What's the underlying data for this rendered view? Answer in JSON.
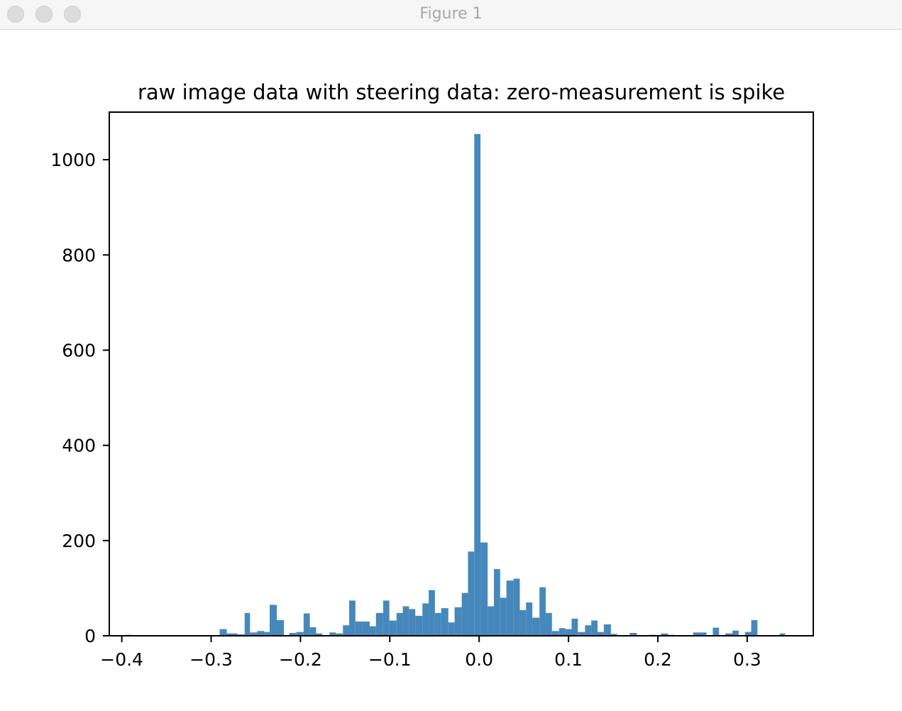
{
  "window": {
    "title": "Figure 1",
    "buttons": [
      "close",
      "minimize",
      "zoom"
    ]
  },
  "chart_data": {
    "type": "bar",
    "title": "raw image data with steering data: zero-measurement is spike",
    "xlabel": "",
    "ylabel": "",
    "xlim": [
      -0.414,
      0.374
    ],
    "ylim": [
      0,
      1100
    ],
    "xticks": [
      -0.4,
      -0.3,
      -0.2,
      -0.1,
      0.0,
      0.1,
      0.2,
      0.3
    ],
    "xtick_labels": [
      "−0.4",
      "−0.3",
      "−0.2",
      "−0.1",
      "0.0",
      "0.1",
      "0.2",
      "0.3"
    ],
    "yticks": [
      0,
      200,
      400,
      600,
      800,
      1000
    ],
    "ytick_labels": [
      "0",
      "200",
      "400",
      "600",
      "800",
      "1000"
    ],
    "bar_color": "#4688bc",
    "grid": false,
    "series": [
      {
        "bins": [
          [
            -0.396,
            -0.3895,
            2
          ],
          [
            -0.2905,
            -0.2825,
            14
          ],
          [
            -0.2825,
            -0.2705,
            5
          ],
          [
            -0.2705,
            -0.2625,
            3
          ],
          [
            -0.2625,
            -0.2565,
            48
          ],
          [
            -0.2565,
            -0.2485,
            7
          ],
          [
            -0.2485,
            -0.2405,
            10
          ],
          [
            -0.2405,
            -0.2345,
            8
          ],
          [
            -0.2345,
            -0.2265,
            65
          ],
          [
            -0.2265,
            -0.2185,
            33
          ],
          [
            -0.2125,
            -0.2045,
            6
          ],
          [
            -0.2045,
            -0.1965,
            8
          ],
          [
            -0.1965,
            -0.1895,
            47
          ],
          [
            -0.1895,
            -0.1825,
            18
          ],
          [
            -0.1825,
            -0.1755,
            5
          ],
          [
            -0.1675,
            -0.1605,
            7
          ],
          [
            -0.1605,
            -0.1525,
            5
          ],
          [
            -0.1525,
            -0.1455,
            22
          ],
          [
            -0.1455,
            -0.1385,
            74
          ],
          [
            -0.1385,
            -0.1305,
            30
          ],
          [
            -0.1305,
            -0.1225,
            30
          ],
          [
            -0.1225,
            -0.1155,
            20
          ],
          [
            -0.1155,
            -0.1075,
            48
          ],
          [
            -0.1075,
            -0.1005,
            74
          ],
          [
            -0.1005,
            -0.0925,
            32
          ],
          [
            -0.0925,
            -0.0855,
            48
          ],
          [
            -0.0855,
            -0.0785,
            62
          ],
          [
            -0.0785,
            -0.0715,
            56
          ],
          [
            -0.0715,
            -0.0635,
            42
          ],
          [
            -0.0635,
            -0.0565,
            68
          ],
          [
            -0.0565,
            -0.0495,
            96
          ],
          [
            -0.0495,
            -0.0425,
            48
          ],
          [
            -0.0425,
            -0.0345,
            58
          ],
          [
            -0.0345,
            -0.0275,
            28
          ],
          [
            -0.0275,
            -0.0195,
            60
          ],
          [
            -0.0195,
            -0.0125,
            90
          ],
          [
            -0.0125,
            -0.0055,
            177
          ],
          [
            -0.0055,
            0.0015,
            1054
          ],
          [
            0.0015,
            0.0095,
            196
          ],
          [
            0.0095,
            0.0165,
            62
          ],
          [
            0.0165,
            0.0235,
            140
          ],
          [
            0.0235,
            0.0305,
            80
          ],
          [
            0.0305,
            0.0385,
            116
          ],
          [
            0.0385,
            0.0455,
            120
          ],
          [
            0.0455,
            0.0525,
            54
          ],
          [
            0.0525,
            0.0595,
            70
          ],
          [
            0.0595,
            0.0675,
            38
          ],
          [
            0.0675,
            0.0745,
            102
          ],
          [
            0.0745,
            0.0815,
            48
          ],
          [
            0.0815,
            0.0895,
            10
          ],
          [
            0.0895,
            0.0965,
            16
          ],
          [
            0.0965,
            0.1035,
            14
          ],
          [
            0.1035,
            0.1105,
            36
          ],
          [
            0.1105,
            0.1185,
            8
          ],
          [
            0.1185,
            0.1255,
            22
          ],
          [
            0.1255,
            0.1325,
            32
          ],
          [
            0.1325,
            0.1395,
            8
          ],
          [
            0.1395,
            0.1475,
            24
          ],
          [
            0.1475,
            0.1545,
            4
          ],
          [
            0.1685,
            0.1765,
            6
          ],
          [
            0.1905,
            0.1975,
            2
          ],
          [
            0.2035,
            0.2115,
            5
          ],
          [
            0.2115,
            0.2185,
            2
          ],
          [
            0.2395,
            0.2545,
            7
          ],
          [
            0.2615,
            0.2685,
            17
          ],
          [
            0.2755,
            0.2835,
            5
          ],
          [
            0.2835,
            0.2905,
            11
          ],
          [
            0.2975,
            0.3045,
            8
          ],
          [
            0.3045,
            0.3115,
            33
          ],
          [
            0.3365,
            0.3425,
            5
          ]
        ]
      }
    ]
  }
}
